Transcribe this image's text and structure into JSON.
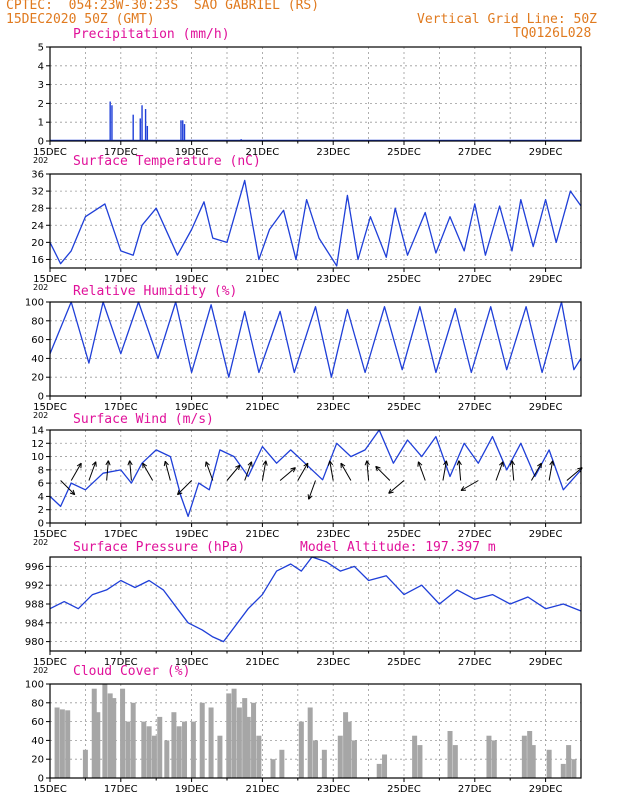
{
  "header": {
    "left_line1": "CPTEC:  054:23W-30:23S  SAO GABRIEL (RS)",
    "left_line2": "15DEC2020 50Z (GMT)",
    "right_line1": "Vertical Grid Line: 50Z",
    "right_line2": "TQ0126L028"
  },
  "colors": {
    "header": "#e07a1f",
    "title": "#e0119a",
    "series": "#1f3fd8",
    "cloud": "#a6a6a6"
  },
  "x_axis": {
    "tick_labels": [
      "15DEC",
      "17DEC",
      "19DEC",
      "21DEC",
      "23DEC",
      "25DEC",
      "27DEC",
      "29DEC"
    ],
    "year_fragment": "202",
    "day_range": [
      15,
      30
    ]
  },
  "chart_data": [
    {
      "type": "bar",
      "id": "precip",
      "title": "Precipitation (mm/h)",
      "ylim": [
        0,
        5
      ],
      "yticks": [
        0,
        1,
        2,
        3,
        4,
        5
      ],
      "x": [
        16.7,
        16.75,
        17.35,
        17.55,
        17.6,
        17.7,
        17.75,
        18.7,
        18.75,
        18.8,
        20.4
      ],
      "values": [
        2.1,
        1.9,
        1.4,
        1.2,
        1.9,
        1.7,
        0.8,
        1.1,
        1.1,
        0.9,
        0.1
      ],
      "grid": true
    },
    {
      "type": "line",
      "id": "temp",
      "title": "Surface Temperature (nC)",
      "ylim": [
        14,
        36
      ],
      "yticks": [
        16,
        20,
        24,
        28,
        32,
        36
      ],
      "x": [
        15.0,
        15.3,
        15.6,
        16.0,
        16.55,
        17.0,
        17.35,
        17.6,
        18.0,
        18.6,
        19.0,
        19.35,
        19.6,
        20.0,
        20.5,
        20.9,
        21.2,
        21.6,
        21.95,
        22.25,
        22.6,
        23.1,
        23.4,
        23.7,
        24.05,
        24.5,
        24.75,
        25.1,
        25.6,
        25.9,
        26.3,
        26.7,
        27.0,
        27.3,
        27.7,
        28.05,
        28.3,
        28.65,
        29.0,
        29.3,
        29.7,
        30.0
      ],
      "values": [
        20.0,
        15.0,
        18.0,
        26.0,
        29.0,
        18.0,
        17.0,
        24.0,
        28.0,
        17.0,
        23.0,
        29.5,
        21.0,
        20.0,
        34.5,
        16.0,
        23.0,
        27.5,
        16.0,
        30.0,
        21.0,
        14.5,
        31.0,
        16.0,
        26.0,
        16.5,
        28.0,
        17.0,
        27.0,
        17.5,
        26.0,
        18.0,
        29.0,
        17.0,
        28.5,
        18.0,
        30.0,
        19.0,
        30.0,
        20.0,
        32.0,
        28.5
      ],
      "grid": true
    },
    {
      "type": "line",
      "id": "rh",
      "title": "Relative Humidity (%)",
      "ylim": [
        0,
        100
      ],
      "yticks": [
        0,
        20,
        40,
        60,
        80,
        100
      ],
      "x": [
        15.0,
        15.6,
        16.1,
        16.5,
        17.0,
        17.5,
        18.05,
        18.55,
        19.0,
        19.55,
        20.05,
        20.5,
        20.9,
        21.5,
        21.9,
        22.5,
        22.95,
        23.4,
        23.9,
        24.45,
        24.95,
        25.45,
        25.9,
        26.45,
        26.9,
        27.45,
        27.9,
        28.45,
        28.9,
        29.45,
        29.8,
        30.0
      ],
      "values": [
        45,
        100,
        35,
        100,
        45,
        100,
        40,
        100,
        25,
        97,
        20,
        90,
        25,
        90,
        25,
        95,
        20,
        92,
        25,
        95,
        28,
        95,
        25,
        93,
        25,
        95,
        28,
        95,
        25,
        100,
        28,
        40
      ],
      "grid": true
    },
    {
      "type": "line",
      "id": "wind",
      "title": "Surface Wind (m/s)",
      "ylim": [
        0,
        14
      ],
      "yticks": [
        0,
        2,
        4,
        6,
        8,
        10,
        12,
        14
      ],
      "x": [
        15.0,
        15.3,
        15.6,
        16.0,
        16.5,
        17.0,
        17.3,
        17.6,
        18.0,
        18.4,
        18.7,
        18.9,
        19.2,
        19.5,
        19.8,
        20.2,
        20.6,
        21.0,
        21.4,
        21.8,
        22.2,
        22.7,
        23.1,
        23.5,
        23.9,
        24.3,
        24.7,
        25.1,
        25.5,
        25.9,
        26.3,
        26.7,
        27.1,
        27.5,
        27.9,
        28.3,
        28.7,
        29.1,
        29.5,
        30.0
      ],
      "values": [
        4.0,
        2.5,
        6.0,
        5.0,
        7.5,
        8.0,
        6.0,
        9.0,
        11.0,
        10.0,
        4.0,
        1.0,
        6.0,
        5.0,
        11.0,
        10.0,
        7.0,
        11.5,
        9.0,
        11.0,
        9.0,
        6.5,
        12.0,
        10.0,
        11.0,
        14.0,
        9.0,
        12.5,
        10.0,
        13.0,
        7.0,
        12.0,
        9.0,
        13.0,
        8.0,
        12.0,
        7.0,
        11.0,
        5.0,
        8.0
      ],
      "arrows": [
        {
          "x": 15.3,
          "dir": 225
        },
        {
          "x": 15.6,
          "dir": 120
        },
        {
          "x": 16.1,
          "dir": 110
        },
        {
          "x": 16.6,
          "dir": 95
        },
        {
          "x": 17.3,
          "dir": 85
        },
        {
          "x": 17.9,
          "dir": 60
        },
        {
          "x": 18.4,
          "dir": 75
        },
        {
          "x": 19.0,
          "dir": -45
        },
        {
          "x": 19.6,
          "dir": 70
        },
        {
          "x": 20.0,
          "dir": 130
        },
        {
          "x": 20.5,
          "dir": 110
        },
        {
          "x": 21.0,
          "dir": 100
        },
        {
          "x": 21.5,
          "dir": 140
        },
        {
          "x": 22.0,
          "dir": 120
        },
        {
          "x": 22.5,
          "dir": -70
        },
        {
          "x": 23.0,
          "dir": 80
        },
        {
          "x": 23.5,
          "dir": 60
        },
        {
          "x": 24.0,
          "dir": 85
        },
        {
          "x": 24.6,
          "dir": 45
        },
        {
          "x": 25.0,
          "dir": -40
        },
        {
          "x": 25.6,
          "dir": 70
        },
        {
          "x": 26.1,
          "dir": 100
        },
        {
          "x": 26.6,
          "dir": 85
        },
        {
          "x": 27.1,
          "dir": -30
        },
        {
          "x": 27.6,
          "dir": 110
        },
        {
          "x": 28.1,
          "dir": 85
        },
        {
          "x": 28.6,
          "dir": 120
        },
        {
          "x": 29.1,
          "dir": 100
        },
        {
          "x": 29.6,
          "dir": 140
        }
      ],
      "grid": true
    },
    {
      "type": "line",
      "id": "press",
      "title": "Surface Pressure (hPa)",
      "annotation": "Model Altitude: 197.397 m",
      "ylim": [
        978,
        998
      ],
      "yticks": [
        980,
        984,
        988,
        992,
        996
      ],
      "x": [
        15.0,
        15.4,
        15.8,
        16.2,
        16.6,
        17.0,
        17.4,
        17.8,
        18.2,
        18.6,
        18.9,
        19.3,
        19.6,
        19.9,
        20.2,
        20.6,
        21.0,
        21.4,
        21.8,
        22.1,
        22.4,
        22.8,
        23.2,
        23.6,
        24.0,
        24.5,
        25.0,
        25.5,
        26.0,
        26.5,
        27.0,
        27.5,
        28.0,
        28.5,
        29.0,
        29.5,
        30.0
      ],
      "values": [
        987.0,
        988.5,
        987.0,
        990.0,
        991.0,
        993.0,
        991.5,
        993.0,
        991.0,
        987.0,
        984.0,
        982.5,
        981.0,
        980.0,
        983.0,
        987.0,
        990.0,
        995.0,
        996.5,
        995.0,
        998.0,
        997.0,
        995.0,
        996.0,
        993.0,
        994.0,
        990.0,
        992.0,
        988.0,
        991.0,
        989.0,
        990.0,
        988.0,
        989.5,
        987.0,
        988.0,
        986.5
      ],
      "grid": true
    },
    {
      "type": "bar",
      "id": "cloud",
      "title": "Cloud Cover (%)",
      "ylim": [
        0,
        100
      ],
      "yticks": [
        0,
        20,
        40,
        60,
        80,
        100
      ],
      "x": [
        15.2,
        15.35,
        15.5,
        16.0,
        16.25,
        16.35,
        16.55,
        16.7,
        16.8,
        17.05,
        17.2,
        17.35,
        17.65,
        17.8,
        17.95,
        18.1,
        18.3,
        18.5,
        18.65,
        18.8,
        19.05,
        19.3,
        19.55,
        19.8,
        20.05,
        20.2,
        20.35,
        20.5,
        20.6,
        20.75,
        20.9,
        21.3,
        21.55,
        22.1,
        22.35,
        22.5,
        22.75,
        23.2,
        23.35,
        23.45,
        23.6,
        24.3,
        24.45,
        25.3,
        25.45,
        26.3,
        26.45,
        27.4,
        27.55,
        28.4,
        28.55,
        28.65,
        29.1,
        29.5,
        29.65,
        29.8
      ],
      "values": [
        75,
        73,
        72,
        30,
        95,
        70,
        100,
        90,
        85,
        95,
        60,
        80,
        60,
        55,
        45,
        65,
        40,
        70,
        55,
        60,
        60,
        80,
        75,
        45,
        90,
        95,
        75,
        85,
        65,
        80,
        45,
        20,
        30,
        60,
        75,
        40,
        30,
        45,
        70,
        60,
        40,
        15,
        25,
        45,
        35,
        50,
        35,
        45,
        40,
        45,
        50,
        35,
        30,
        15,
        35,
        20
      ],
      "grid": true
    }
  ]
}
